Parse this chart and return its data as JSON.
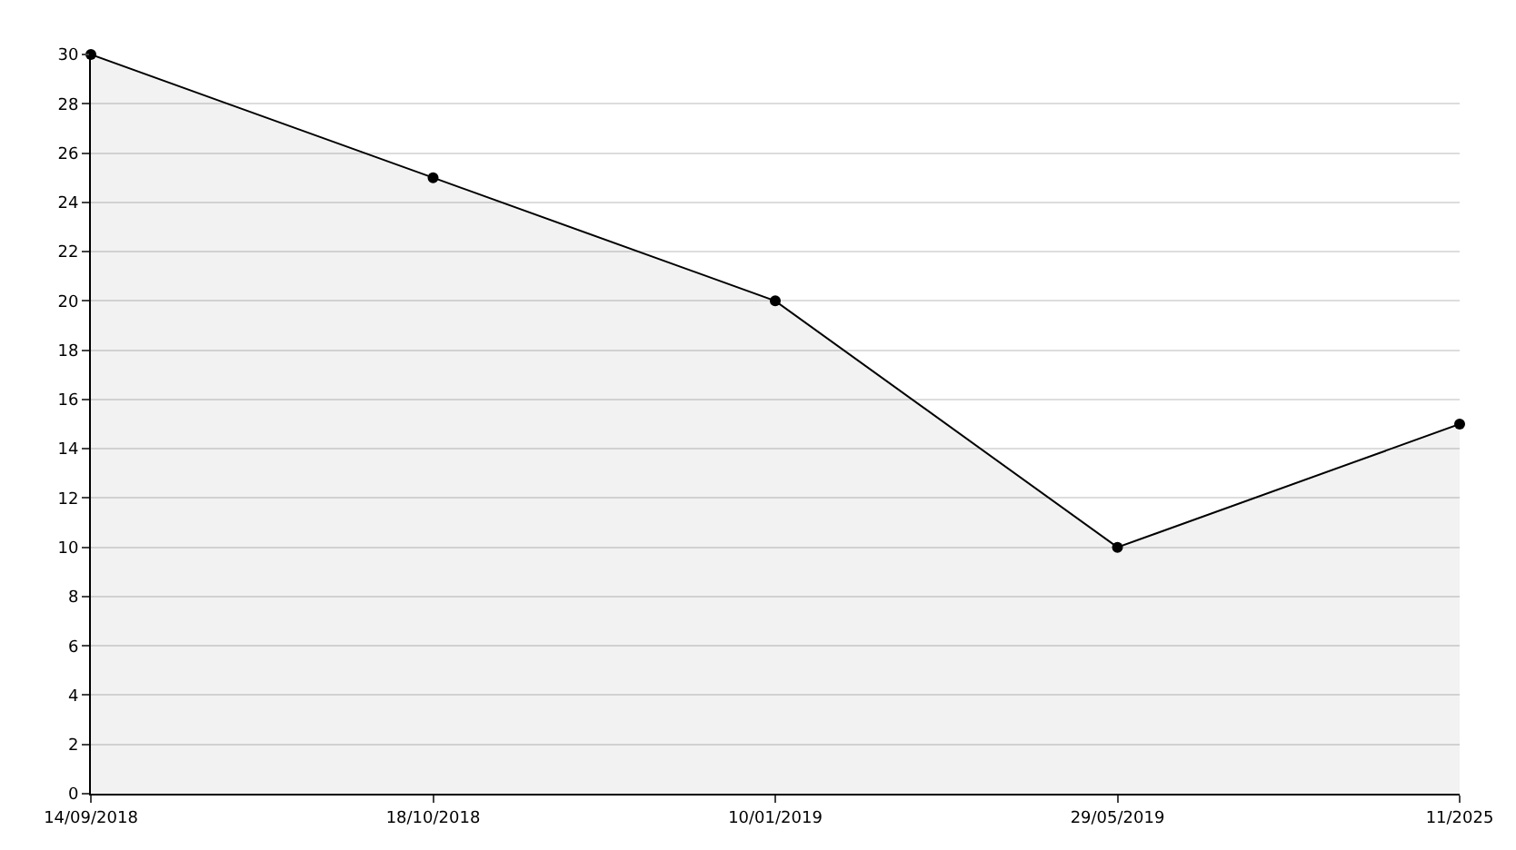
{
  "chart_data": {
    "type": "area",
    "categories": [
      "14/09/2018",
      "18/10/2018",
      "10/01/2019",
      "29/05/2019",
      "11/2025"
    ],
    "series": [
      {
        "color": "#000000",
        "values": [
          30,
          25,
          20,
          10,
          15
        ]
      }
    ],
    "ylim": [
      0,
      30
    ],
    "yticks": [
      0,
      2,
      4,
      6,
      8,
      10,
      12,
      14,
      16,
      18,
      20,
      22,
      24,
      26,
      28,
      30
    ],
    "grid": "y",
    "marker": "circle",
    "line_style": "solid"
  }
}
